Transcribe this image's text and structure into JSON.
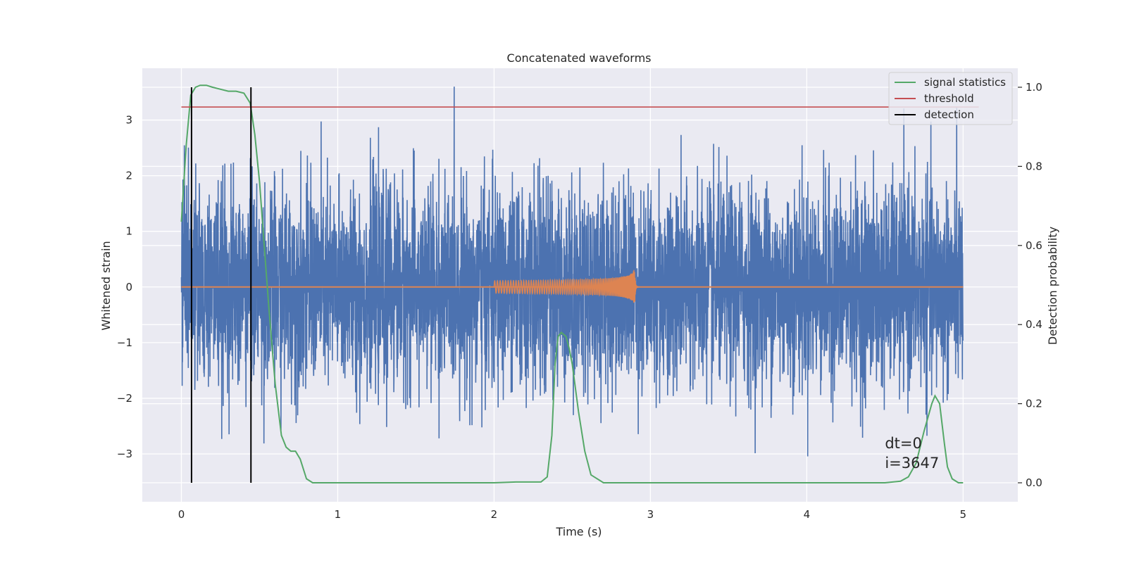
{
  "chart_data": {
    "type": "line",
    "title": "Concatenated waveforms",
    "xlabel": "Time (s)",
    "ylabel": "Whitened strain",
    "y2label": "Detection probability",
    "xlim": [
      -0.25,
      5.35
    ],
    "ylim": [
      -3.86,
      3.93
    ],
    "y2lim": [
      -0.048,
      1.048
    ],
    "x_ticks": [
      0,
      1,
      2,
      3,
      4,
      5
    ],
    "y_ticks": [
      -3,
      -2,
      -1,
      0,
      1,
      2,
      3
    ],
    "y2_ticks": [
      0.0,
      0.2,
      0.4,
      0.6,
      0.8,
      1.0
    ],
    "x_tick_labels": [
      "0",
      "1",
      "2",
      "3",
      "4",
      "5"
    ],
    "y_tick_labels": [
      "−3",
      "−2",
      "−1",
      "0",
      "1",
      "2",
      "3"
    ],
    "y2_tick_labels": [
      "0.0",
      "0.2",
      "0.4",
      "0.6",
      "0.8",
      "1.0"
    ],
    "grid": true,
    "legend_position": "top-right",
    "legend": [
      {
        "label": "signal statistics",
        "color": "#55a868"
      },
      {
        "label": "threshold",
        "color": "#c44e52"
      },
      {
        "label": "detection",
        "color": "#000000"
      }
    ],
    "series": [
      {
        "kind": "noise",
        "color": "#4c72b0",
        "x_range": [
          0,
          5
        ],
        "amplitude_range": [
          -3.5,
          3.6
        ]
      },
      {
        "kind": "chirp",
        "color": "#dd8452",
        "x_range": [
          2.0,
          2.9
        ],
        "peak_amplitude": 0.35
      },
      {
        "name": "signal statistics",
        "color": "#55a868",
        "axis": "right",
        "x": [
          0.0,
          0.03,
          0.06,
          0.09,
          0.12,
          0.16,
          0.2,
          0.25,
          0.3,
          0.35,
          0.4,
          0.44,
          0.47,
          0.5,
          0.53,
          0.56,
          0.6,
          0.64,
          0.67,
          0.7,
          0.73,
          0.76,
          0.8,
          0.84,
          0.9,
          1.5,
          2.0,
          2.14,
          2.3,
          2.34,
          2.37,
          2.39,
          2.41,
          2.43,
          2.46,
          2.48,
          2.5,
          2.54,
          2.58,
          2.62,
          2.7,
          3.0,
          4.0,
          4.5,
          4.6,
          4.65,
          4.7,
          4.75,
          4.8,
          4.82,
          4.85,
          4.88,
          4.9,
          4.93,
          4.97,
          5.0
        ],
        "y": [
          0.66,
          0.85,
          0.98,
          1.0,
          1.005,
          1.005,
          1.0,
          0.995,
          0.99,
          0.99,
          0.985,
          0.96,
          0.88,
          0.76,
          0.6,
          0.44,
          0.25,
          0.12,
          0.09,
          0.08,
          0.08,
          0.06,
          0.01,
          0.0,
          0.0,
          0.0,
          0.0,
          0.002,
          0.002,
          0.015,
          0.12,
          0.3,
          0.37,
          0.38,
          0.37,
          0.34,
          0.3,
          0.18,
          0.08,
          0.02,
          0.0,
          0.0,
          0.0,
          0.0,
          0.004,
          0.015,
          0.05,
          0.13,
          0.2,
          0.22,
          0.2,
          0.1,
          0.04,
          0.01,
          0.0,
          0.0
        ]
      },
      {
        "name": "threshold",
        "color": "#c44e52",
        "axis": "right",
        "y": 0.95,
        "x_range": [
          0,
          5.1
        ]
      },
      {
        "name": "detection",
        "color": "#000000",
        "axis": "right",
        "x": [
          0.065,
          0.445
        ],
        "y_range": [
          0.0,
          1.0
        ]
      }
    ],
    "annotations": [
      {
        "text": "dt=0",
        "x": 4.5,
        "y": -2.9
      },
      {
        "text": "i=3647",
        "x": 4.5,
        "y": -3.25
      }
    ]
  }
}
